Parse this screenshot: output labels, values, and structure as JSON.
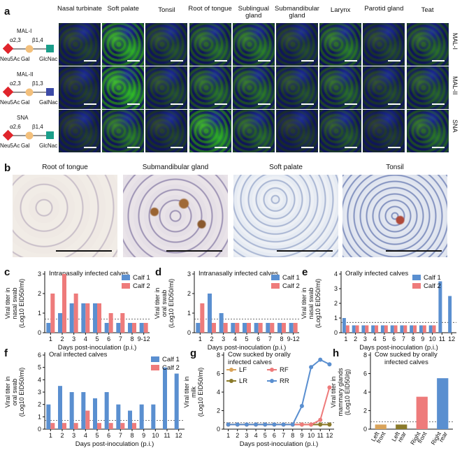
{
  "panel_a": {
    "letter": "a",
    "columns": [
      "Nasal turbinate",
      "Soft palate",
      "Tonsil",
      "Root of tongue",
      "Sublingual gland",
      "Submandibular gland",
      "Larynx",
      "Parotid gland",
      "Teat"
    ],
    "rows": [
      {
        "label": "MAL-I",
        "name": "MAL-I",
        "link1": "α2,3",
        "link2": "β1,4",
        "sugars": [
          "Neu5Ac",
          "Gal",
          "GlcNac"
        ],
        "end_color": "#1a9e8a"
      },
      {
        "label": "MAL-II",
        "name": "MAL-II",
        "link1": "α2,3",
        "link2": "β1,3",
        "sugars": [
          "Neu5Ac",
          "Gal",
          "GalNac"
        ],
        "end_color": "#3c4aa8"
      },
      {
        "label": "SNA",
        "name": "SNA",
        "link1": "α2,6",
        "link2": "β1,4",
        "sugars": [
          "Neu5Ac",
          "Gal",
          "GlcNac"
        ],
        "end_color": "#1a9e8a"
      }
    ]
  },
  "panel_b": {
    "letter": "b",
    "titles": [
      "Root of tongue",
      "Submandibular gland",
      "Soft palate",
      "Tonsil"
    ]
  },
  "chart_data": [
    {
      "id": "c",
      "letter": "c",
      "type": "bar",
      "title": "Intranasally infected calves",
      "ylabel": "Viral titer in nasal swab (Log10 EID50/ml)",
      "xlabel": "Days post-inoculation (p.i.)",
      "categories": [
        "1",
        "2",
        "3",
        "4",
        "5",
        "6",
        "7",
        "8",
        "9-12"
      ],
      "ylim": [
        0,
        3
      ],
      "yticks": [
        0,
        1,
        2,
        3
      ],
      "threshold": 0.7,
      "series": [
        {
          "name": "Calf 1",
          "color": "#5a8fd0",
          "values": [
            0.5,
            1,
            1.5,
            1.5,
            1.5,
            0.5,
            0.5,
            0.5,
            0.5
          ]
        },
        {
          "name": "Calf 2",
          "color": "#ee7b7b",
          "values": [
            2,
            3,
            2,
            1.5,
            1.5,
            1,
            1,
            0.5,
            0.5
          ]
        }
      ]
    },
    {
      "id": "d",
      "letter": "d",
      "type": "bar",
      "title": "Intranasally infected calves",
      "ylabel": "Viral titer in oral swab (Log10 EID50/ml)",
      "xlabel": "Days post-inoculation (p.i.)",
      "categories": [
        "1",
        "2",
        "3",
        "4",
        "5",
        "6",
        "7",
        "8",
        "9-12"
      ],
      "ylim": [
        0,
        3
      ],
      "yticks": [
        0,
        1,
        2,
        3
      ],
      "threshold": 0.7,
      "series": [
        {
          "name": "Calf 1",
          "color": "#5a8fd0",
          "values": [
            0.5,
            2,
            1,
            0.5,
            0.5,
            0.5,
            0.5,
            0.5,
            0.5
          ]
        },
        {
          "name": "Calf 2",
          "color": "#ee7b7b",
          "values": [
            1.5,
            0.5,
            0.5,
            0.5,
            0.5,
            0.5,
            0.5,
            0.5,
            0.5
          ]
        }
      ]
    },
    {
      "id": "e",
      "letter": "e",
      "type": "bar",
      "title": "Orally infected calves",
      "ylabel": "Viral titer in nasal swab (Log10 EID50/ml)",
      "xlabel": "Days post-inoculation (p.i.)",
      "categories": [
        "1",
        "2",
        "3",
        "4",
        "5",
        "6",
        "7",
        "8",
        "9",
        "10",
        "11",
        "12"
      ],
      "ylim": [
        0,
        4
      ],
      "yticks": [
        0,
        1,
        2,
        3,
        4
      ],
      "threshold": 0.7,
      "series": [
        {
          "name": "Calf 1",
          "color": "#5a8fd0",
          "values": [
            1,
            0.5,
            0.5,
            0.5,
            0.5,
            0.5,
            0.5,
            0.5,
            0.5,
            0.5,
            3.5,
            2.5
          ]
        },
        {
          "name": "Calf 2",
          "color": "#ee7b7b",
          "values": [
            0.5,
            0.5,
            0.5,
            0.5,
            0.5,
            0.5,
            0.5,
            0.5,
            0.5,
            0.5,
            0,
            0
          ]
        }
      ]
    },
    {
      "id": "f",
      "letter": "f",
      "type": "bar",
      "title": "Oral infected calves",
      "ylabel": "Viral titer in oral swab (Log10 EID50/ml)",
      "xlabel": "Days post-inoculation (p.i.)",
      "categories": [
        "1",
        "2",
        "3",
        "4",
        "5",
        "6",
        "7",
        "8",
        "9",
        "10",
        "11",
        "12"
      ],
      "ylim": [
        0,
        6
      ],
      "yticks": [
        0,
        1,
        2,
        3,
        4,
        5,
        6
      ],
      "threshold": 0.7,
      "series": [
        {
          "name": "Calf 1",
          "color": "#5a8fd0",
          "values": [
            2,
            3.5,
            3,
            3,
            2.5,
            3,
            2,
            1.5,
            2,
            2,
            5,
            4.5
          ]
        },
        {
          "name": "Calf 2",
          "color": "#ee7b7b",
          "values": [
            0.5,
            0.5,
            0.5,
            1.5,
            0.5,
            0.5,
            0.5,
            0.5,
            0,
            0,
            0,
            0
          ]
        }
      ]
    },
    {
      "id": "g",
      "letter": "g",
      "type": "line",
      "title": "Cow sucked by orally infected calves",
      "ylabel": "Viral titer in milk (Log10 EID50/ml)",
      "xlabel": "Days post-inoculation (p.i.)",
      "x": [
        1,
        2,
        3,
        4,
        5,
        6,
        7,
        8,
        9,
        10,
        11,
        12
      ],
      "ylim": [
        0,
        8
      ],
      "yticks": [
        0,
        2,
        4,
        6,
        8
      ],
      "threshold": 0.7,
      "series": [
        {
          "name": "LF",
          "color": "#d9a35a",
          "values": [
            0.5,
            0.5,
            0.5,
            0.5,
            0.5,
            0.5,
            0.5,
            0.5,
            0.5,
            0.5,
            0.5,
            0.5
          ]
        },
        {
          "name": "LR",
          "color": "#8a7a2a",
          "values": [
            0.5,
            0.5,
            0.5,
            0.5,
            0.5,
            0.5,
            0.5,
            0.5,
            0.5,
            0.5,
            0.5,
            0.5
          ]
        },
        {
          "name": "RF",
          "color": "#ee7b7b",
          "values": [
            0.5,
            0.5,
            0.5,
            0.5,
            0.5,
            0.5,
            0.5,
            0.5,
            0.5,
            0.5,
            1,
            4.5
          ]
        },
        {
          "name": "RR",
          "color": "#5a8fd0",
          "values": [
            0.5,
            0.5,
            0.5,
            0.5,
            0.5,
            0.5,
            0.5,
            0.5,
            2.5,
            6.7,
            7.5,
            7
          ]
        }
      ]
    },
    {
      "id": "h",
      "letter": "h",
      "type": "bar",
      "title": "Cow sucked by orally infected calves",
      "ylabel": "Viral titer in mammary glands (Log10 EID50/g)",
      "categories": [
        "Left front",
        "Left rear",
        "Right front",
        "Right rear"
      ],
      "ylim": [
        0,
        8
      ],
      "yticks": [
        0,
        2,
        4,
        6,
        8
      ],
      "threshold": 0.8,
      "values": [
        0.5,
        0.5,
        3.5,
        5.5
      ],
      "colors": [
        "#d9a35a",
        "#8a7a2a",
        "#ee7b7b",
        "#5a8fd0"
      ]
    }
  ]
}
